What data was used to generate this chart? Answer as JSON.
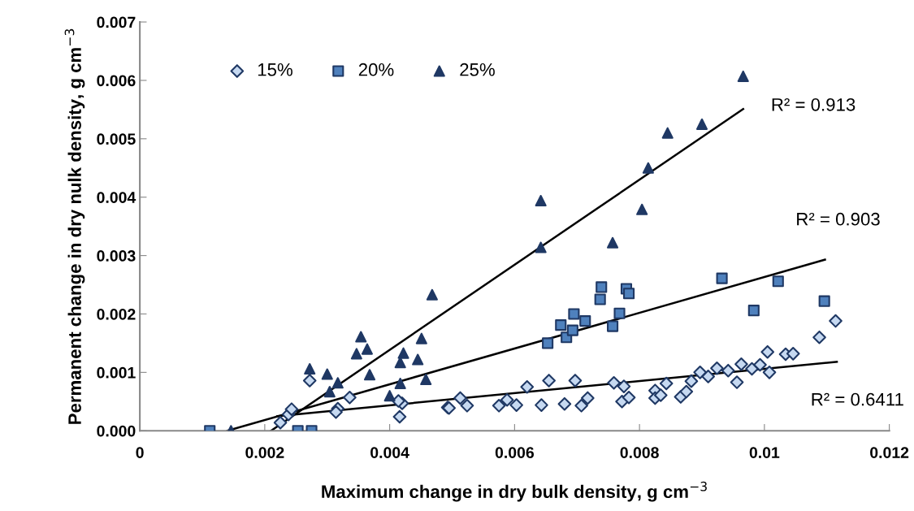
{
  "chart_data": {
    "type": "scatter",
    "xlabel": "Maximum change in dry bulk density, g cm$^{−3}$",
    "ylabel": "Permanent change in dry nulk density, g cm$^{−3}$",
    "xlim": [
      0,
      0.012
    ],
    "xticks": [
      0,
      0.002,
      0.004,
      0.006,
      0.008,
      0.01,
      0.012
    ],
    "ylim": [
      0,
      0.007
    ],
    "yticks": [
      {
        "value": 0,
        "label": "0.000"
      },
      {
        "value": 0.001,
        "label": "0.001"
      },
      {
        "value": 0.002,
        "label": "0.002"
      },
      {
        "value": 0.003,
        "label": "0.003"
      },
      {
        "value": 0.004,
        "label": "0.004"
      },
      {
        "value": 0.005,
        "label": "0.005"
      },
      {
        "value": 0.006,
        "label": "0.006"
      },
      {
        "value": 0.007,
        "label": "0.007"
      }
    ],
    "grid": false,
    "legend": "top",
    "series": [
      {
        "name": "15%",
        "color": "#c6d9f1",
        "marker": "diamond",
        "x": [
          0.00225,
          0.00238,
          0.00243,
          0.00272,
          0.00317,
          0.00314,
          0.00336,
          0.00416,
          0.0042,
          0.00414,
          0.00493,
          0.00495,
          0.00513,
          0.00524,
          0.00575,
          0.00588,
          0.00603,
          0.0062,
          0.00643,
          0.00655,
          0.0068,
          0.00697,
          0.00707,
          0.00717,
          0.00759,
          0.00772,
          0.00775,
          0.00783,
          0.00825,
          0.00825,
          0.00834,
          0.00843,
          0.00866,
          0.00875,
          0.00883,
          0.00897,
          0.0091,
          0.00924,
          0.00942,
          0.00956,
          0.00963,
          0.0098,
          0.00993,
          0.01005,
          0.01008,
          0.01034,
          0.01046,
          0.01088,
          0.01114
        ],
        "values": [
          0.00014,
          0.00028,
          0.00037,
          0.00086,
          0.00038,
          0.00032,
          0.00057,
          0.00024,
          0.00047,
          0.00051,
          0.0004,
          0.00039,
          0.00056,
          0.00043,
          0.00043,
          0.00053,
          0.00044,
          0.00075,
          0.00044,
          0.00086,
          0.00046,
          0.00086,
          0.00043,
          0.00056,
          0.00082,
          0.0005,
          0.00076,
          0.00057,
          0.00069,
          0.00056,
          0.00061,
          0.00081,
          0.00058,
          0.00067,
          0.00085,
          0.001,
          0.00093,
          0.00107,
          0.00103,
          0.00083,
          0.00114,
          0.00106,
          0.00113,
          0.00135,
          0.001,
          0.00131,
          0.00132,
          0.0016,
          0.00188
        ]
      },
      {
        "name": "20%",
        "color": "#4f81bd",
        "marker": "square",
        "x": [
          0.00112,
          0.00253,
          0.00275,
          0.00653,
          0.00683,
          0.00674,
          0.00693,
          0.00695,
          0.00713,
          0.00737,
          0.00739,
          0.00757,
          0.00768,
          0.00779,
          0.00783,
          0.00932,
          0.00983,
          0.01022,
          0.01096
        ],
        "values": [
          0,
          0,
          0,
          0.0015,
          0.0016,
          0.00181,
          0.00172,
          0.002,
          0.00188,
          0.00225,
          0.00246,
          0.00179,
          0.00201,
          0.00243,
          0.00235,
          0.00261,
          0.00206,
          0.00256,
          0.00222
        ]
      },
      {
        "name": "25%",
        "color": "#1f3864",
        "marker": "triangle",
        "x": [
          0.00146,
          0.00272,
          0.003,
          0.00304,
          0.00317,
          0.00354,
          0.00347,
          0.00364,
          0.00368,
          0.004,
          0.00417,
          0.00422,
          0.00417,
          0.00445,
          0.00451,
          0.00458,
          0.00468,
          0.00642,
          0.00642,
          0.00757,
          0.00804,
          0.00814,
          0.00845,
          0.009,
          0.00966
        ],
        "values": [
          0,
          0.00106,
          0.00097,
          0.00067,
          0.00082,
          0.00161,
          0.00132,
          0.0014,
          0.00096,
          0.0006,
          0.00081,
          0.00133,
          0.00117,
          0.00122,
          0.00158,
          0.00088,
          0.00233,
          0.00314,
          0.00394,
          0.00322,
          0.00379,
          0.0045,
          0.0051,
          0.00525,
          0.00607
        ]
      },
      {
        "type": "line",
        "color": "#000000",
        "x": [
          0.0022,
          0.01116
        ],
        "values": [
          0.00025,
          0.00118
        ]
      },
      {
        "type": "line",
        "color": "#000000",
        "x": [
          0.0014,
          0.01097
        ],
        "values": [
          0,
          0.00293
        ]
      },
      {
        "type": "line",
        "color": "#000000",
        "x": [
          0.0021,
          0.00966
        ],
        "values": [
          0,
          0.00551
        ]
      }
    ],
    "annotations": [
      "R² = 0.913",
      "R² = 0.903",
      "R² = 0.6411"
    ]
  }
}
